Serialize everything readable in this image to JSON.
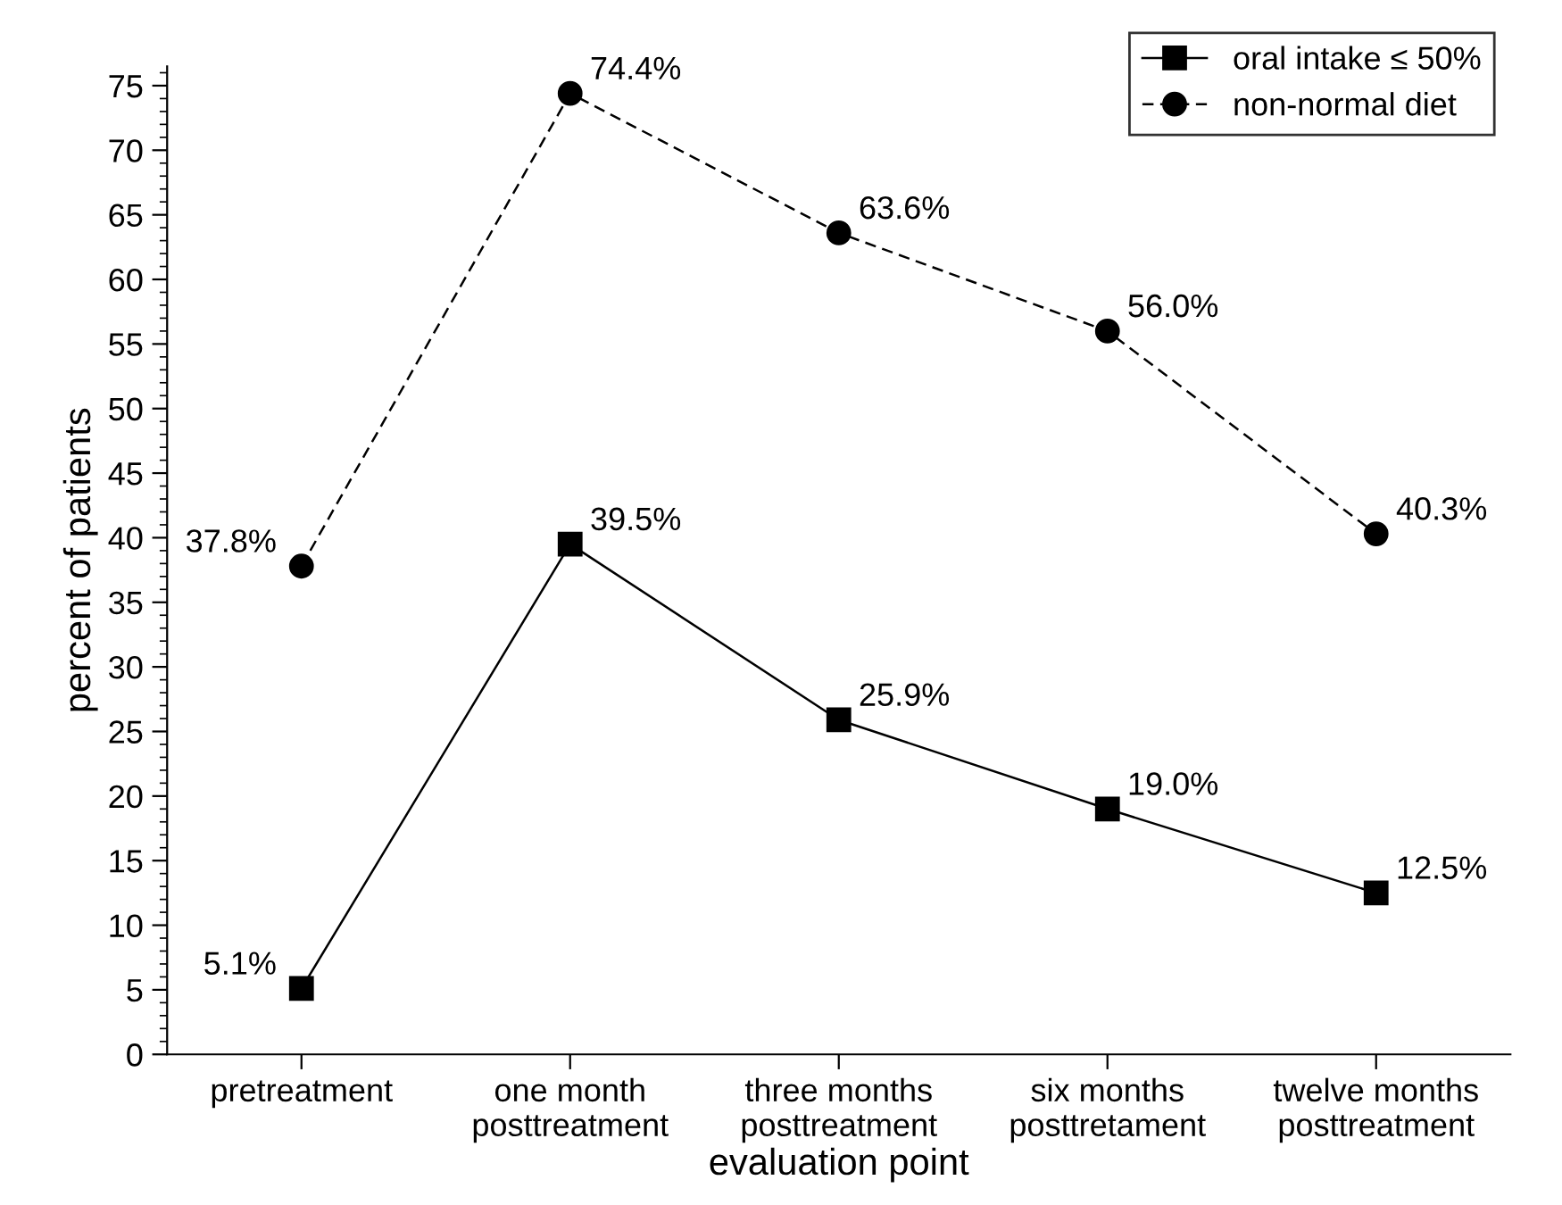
{
  "chart_data": {
    "type": "line",
    "xlabel": "evaluation point",
    "ylabel": "percent of patients",
    "categories": [
      "pretreatment",
      "one month\nposttreatment",
      "three months\nposttreatment",
      "six months\nposttretament",
      "twelve months\nposttreatment"
    ],
    "series": [
      {
        "name": "oral intake ≤ 50%",
        "color": "#000000",
        "marker": "square",
        "line_style": "solid",
        "values": [
          5.1,
          39.5,
          25.9,
          19.0,
          12.5
        ],
        "value_labels": [
          "5.1%",
          "39.5%",
          "25.9%",
          "19.0%",
          "12.5%"
        ]
      },
      {
        "name": "non-normal diet",
        "color": "#000000",
        "marker": "circle",
        "line_style": "dashed",
        "values": [
          37.8,
          74.4,
          63.6,
          56.0,
          40.3
        ],
        "value_labels": [
          "37.8%",
          "74.4%",
          "63.6%",
          "56.0%",
          "40.3%"
        ]
      }
    ],
    "ylim": [
      0,
      76.5
    ],
    "yticks": [
      0,
      5,
      10,
      15,
      20,
      25,
      30,
      35,
      40,
      45,
      50,
      55,
      60,
      65,
      70,
      75
    ],
    "grid": false,
    "legend": "top right"
  }
}
